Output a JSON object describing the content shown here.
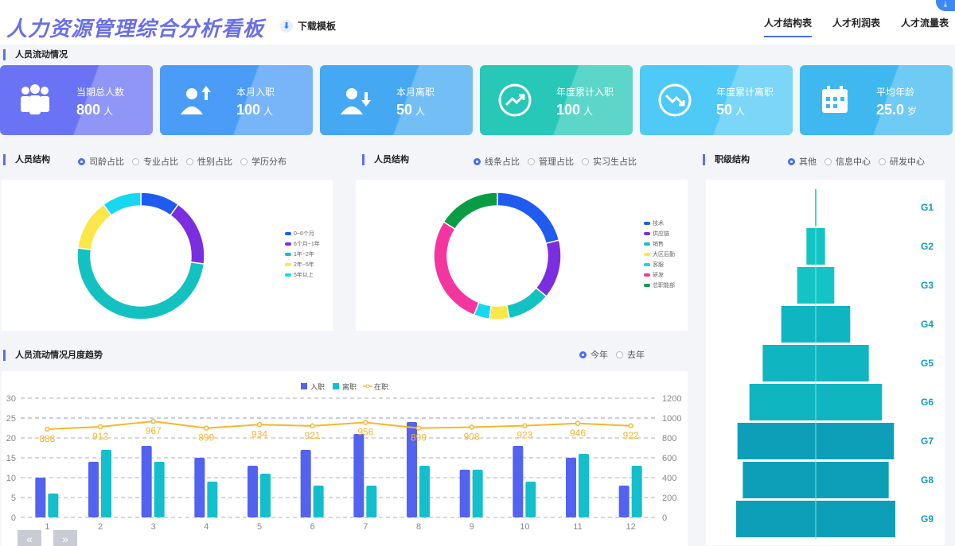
{
  "header": {
    "title": "人力资源管理综合分析看板",
    "download_label": "下载模板",
    "tabs": [
      {
        "label": "人才结构表",
        "active": true
      },
      {
        "label": "人才利润表",
        "active": false
      },
      {
        "label": "人才流量表",
        "active": false
      }
    ]
  },
  "flow_section": {
    "title": "人员流动情况",
    "cards": [
      {
        "label": "当期总人数",
        "value": "800",
        "unit": "人",
        "icon": "people-group-icon",
        "color": "#6a73f3"
      },
      {
        "label": "本月入职",
        "value": "100",
        "unit": "人",
        "icon": "person-up-icon",
        "color": "#4a9cf6"
      },
      {
        "label": "本月离职",
        "value": "50",
        "unit": "人",
        "icon": "person-down-icon",
        "color": "#44a8f2"
      },
      {
        "label": "年度累计入职",
        "value": "100",
        "unit": "人",
        "icon": "trend-up-icon",
        "color": "#27c8b8"
      },
      {
        "label": "年度累计离职",
        "value": "50",
        "unit": "人",
        "icon": "trend-down-icon",
        "color": "#4fc9f5"
      },
      {
        "label": "平均年龄",
        "value": "25.0",
        "unit": "岁",
        "icon": "calendar-icon",
        "color": "#3fb8f0"
      }
    ]
  },
  "structure1": {
    "title": "人员结构",
    "options": [
      {
        "label": "司龄占比",
        "on": true
      },
      {
        "label": "专业占比",
        "on": false
      },
      {
        "label": "性别占比",
        "on": false
      },
      {
        "label": "学历分布",
        "on": false
      }
    ]
  },
  "structure2": {
    "title": "人员结构",
    "options": [
      {
        "label": "线条占比",
        "on": true
      },
      {
        "label": "管理占比",
        "on": false
      },
      {
        "label": "实习生占比",
        "on": false
      }
    ]
  },
  "rank": {
    "title": "职级结构",
    "options": [
      {
        "label": "其他",
        "on": true
      },
      {
        "label": "信息中心",
        "on": false
      },
      {
        "label": "研发中心",
        "on": false
      }
    ],
    "levels": [
      "G1",
      "G2",
      "G3",
      "G4",
      "G5",
      "G6",
      "G7",
      "G8",
      "G9"
    ],
    "relative_widths": [
      0.01,
      0.14,
      0.28,
      0.52,
      0.8,
      1.0,
      1.18,
      1.1,
      1.2
    ]
  },
  "trend": {
    "title": "人员流动情况月度趋势",
    "options": [
      {
        "label": "今年",
        "on": true
      },
      {
        "label": "去年",
        "on": false
      }
    ]
  },
  "chart_data": [
    {
      "type": "pie",
      "donut": true,
      "categories": [
        "0~6个月",
        "6个月~1年",
        "1年~2年",
        "2年~5年",
        "5年以上"
      ],
      "values": [
        10,
        17,
        50,
        13,
        10
      ],
      "colors": [
        "#1f5bef",
        "#7a2ee0",
        "#13c2c0",
        "#fbe748",
        "#16d8f0"
      ],
      "legend": "right"
    },
    {
      "type": "pie",
      "donut": true,
      "categories": [
        "技术",
        "供应链",
        "销售",
        "大区后勤",
        "客服",
        "研发",
        "总职能部"
      ],
      "values": [
        21,
        15,
        11,
        5,
        4,
        28,
        16
      ],
      "colors": [
        "#1f5bef",
        "#7a2ee0",
        "#13c2c0",
        "#fbe748",
        "#16d8f0",
        "#f5359f",
        "#0a9c44"
      ],
      "legend": "right"
    },
    {
      "type": "bar",
      "x": [
        "1",
        "2",
        "3",
        "4",
        "5",
        "6",
        "7",
        "8",
        "9",
        "10",
        "11",
        "12"
      ],
      "series": [
        {
          "name": "入职",
          "type": "bar",
          "color": "#5462f0",
          "values": [
            10,
            14,
            18,
            15,
            13,
            17,
            21,
            24,
            12,
            18,
            15,
            8
          ]
        },
        {
          "name": "离职",
          "type": "bar",
          "color": "#13bfcc",
          "values": [
            6,
            17,
            14,
            9,
            11,
            8,
            8,
            13,
            12,
            9,
            16,
            13
          ]
        },
        {
          "name": "在职",
          "type": "line",
          "axis": "right",
          "color": "#f8b62d",
          "values": [
            888,
            912,
            967,
            899,
            934,
            921,
            956,
            899,
            908,
            923,
            946,
            922
          ]
        }
      ],
      "ylim": [
        0,
        30
      ],
      "y_ticks": [
        "0",
        "5",
        "10",
        "15",
        "20",
        "25",
        "30"
      ],
      "y2lim": [
        0,
        1200
      ],
      "y2_ticks": [
        "0",
        "200",
        "400",
        "600",
        "800",
        "1000",
        "1200"
      ],
      "legend": "top-center"
    }
  ]
}
